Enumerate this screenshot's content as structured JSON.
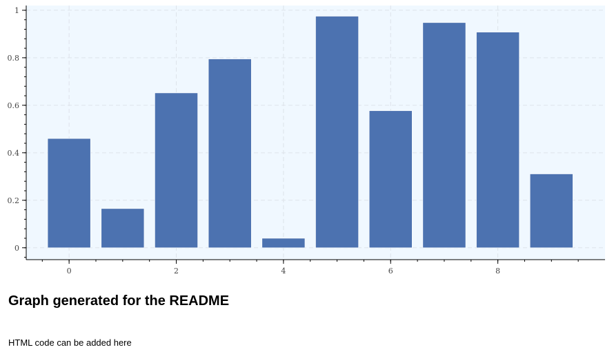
{
  "chart_data": {
    "type": "bar",
    "x": [
      0,
      1,
      2,
      3,
      4,
      5,
      6,
      7,
      8,
      9
    ],
    "values": [
      0.46,
      0.165,
      0.652,
      0.795,
      0.04,
      0.975,
      0.577,
      0.948,
      0.908,
      0.311
    ],
    "xlim": [
      -0.8,
      10
    ],
    "ylim": [
      -0.05,
      1.02
    ],
    "x_ticks": [
      "0",
      "2",
      "4",
      "6",
      "8"
    ],
    "y_ticks": [
      "0",
      "0.2",
      "0.4",
      "0.6",
      "0.8",
      "1"
    ],
    "title": "",
    "xlabel": "",
    "ylabel": "",
    "grid": true,
    "colors": {
      "bar": "#4c72b0",
      "plot_background": "#f0f8ff",
      "grid": "#dde3ea",
      "axis": "#000000"
    }
  },
  "page": {
    "heading": "Graph generated for the README",
    "note": "HTML code can be added here"
  }
}
